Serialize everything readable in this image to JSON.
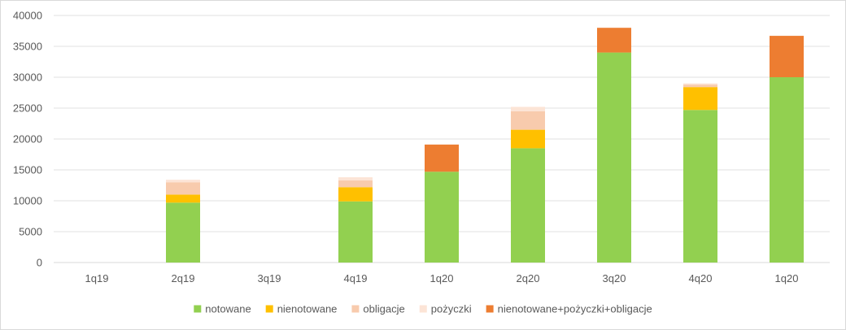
{
  "chart_data": {
    "type": "bar",
    "stacked": true,
    "title": "",
    "xlabel": "",
    "ylabel": "",
    "ylim": [
      0,
      40000
    ],
    "yticks": [
      0,
      5000,
      10000,
      15000,
      20000,
      25000,
      30000,
      35000,
      40000
    ],
    "grid": true,
    "legend_position": "bottom",
    "categories": [
      "1q19",
      "2q19",
      "3q19",
      "4q19",
      "1q20",
      "2q20",
      "3q20",
      "4q20",
      "1q20"
    ],
    "series": [
      {
        "name": "notowane",
        "color": "#92d050",
        "values": [
          0,
          9700,
          0,
          9900,
          14700,
          18500,
          34000,
          24700,
          30000
        ]
      },
      {
        "name": "nienotowane",
        "color": "#ffc000",
        "values": [
          0,
          1300,
          0,
          2300,
          0,
          3000,
          0,
          3700,
          0
        ]
      },
      {
        "name": "obligacje",
        "color": "#f8cbad",
        "values": [
          0,
          2000,
          0,
          1100,
          0,
          3000,
          0,
          400,
          0
        ]
      },
      {
        "name": "pożyczki",
        "color": "#fce4d6",
        "values": [
          0,
          400,
          0,
          500,
          0,
          700,
          0,
          200,
          0
        ]
      },
      {
        "name": "nienotowane+pożyczki+obligacje",
        "color": "#ed7d31",
        "values": [
          0,
          0,
          0,
          0,
          4400,
          0,
          4000,
          0,
          6700
        ]
      }
    ]
  }
}
